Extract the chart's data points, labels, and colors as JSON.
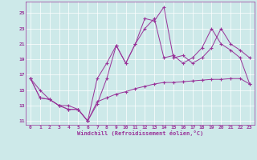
{
  "xlabel": "Windchill (Refroidissement éolien,°C)",
  "xlim": [
    -0.5,
    23.5
  ],
  "ylim": [
    10.5,
    26.5
  ],
  "xticks": [
    0,
    1,
    2,
    3,
    4,
    5,
    6,
    7,
    8,
    9,
    10,
    11,
    12,
    13,
    14,
    15,
    16,
    17,
    18,
    19,
    20,
    21,
    22,
    23
  ],
  "yticks": [
    11,
    13,
    15,
    17,
    19,
    21,
    23,
    25
  ],
  "bg_color": "#cde9e9",
  "line_color": "#993399",
  "line1": [
    [
      0,
      16.5
    ],
    [
      1,
      15.0
    ],
    [
      2,
      13.8
    ],
    [
      3,
      13.0
    ],
    [
      4,
      13.0
    ],
    [
      5,
      12.5
    ],
    [
      6,
      11.0
    ],
    [
      7,
      13.2
    ],
    [
      8,
      16.5
    ],
    [
      9,
      20.8
    ],
    [
      10,
      18.5
    ],
    [
      11,
      21.0
    ],
    [
      12,
      24.3
    ],
    [
      13,
      24.0
    ],
    [
      14,
      25.8
    ],
    [
      15,
      19.2
    ],
    [
      16,
      19.5
    ],
    [
      17,
      18.5
    ],
    [
      18,
      19.2
    ],
    [
      19,
      20.5
    ],
    [
      20,
      23.0
    ],
    [
      21,
      21.0
    ],
    [
      22,
      20.2
    ],
    [
      23,
      19.2
    ]
  ],
  "line2": [
    [
      0,
      16.5
    ],
    [
      1,
      14.0
    ],
    [
      2,
      13.8
    ],
    [
      3,
      13.0
    ],
    [
      4,
      12.5
    ],
    [
      5,
      12.5
    ],
    [
      6,
      11.0
    ],
    [
      7,
      13.5
    ],
    [
      8,
      14.0
    ],
    [
      9,
      14.5
    ],
    [
      10,
      14.8
    ],
    [
      11,
      15.2
    ],
    [
      12,
      15.5
    ],
    [
      13,
      15.8
    ],
    [
      14,
      16.0
    ],
    [
      15,
      16.0
    ],
    [
      16,
      16.1
    ],
    [
      17,
      16.2
    ],
    [
      18,
      16.3
    ],
    [
      19,
      16.4
    ],
    [
      20,
      16.4
    ],
    [
      21,
      16.5
    ],
    [
      22,
      16.5
    ],
    [
      23,
      15.8
    ]
  ],
  "line3": [
    [
      0,
      16.5
    ],
    [
      1,
      14.0
    ],
    [
      2,
      13.8
    ],
    [
      3,
      13.0
    ],
    [
      4,
      12.5
    ],
    [
      5,
      12.5
    ],
    [
      6,
      11.0
    ],
    [
      7,
      16.5
    ],
    [
      8,
      18.5
    ],
    [
      9,
      20.8
    ],
    [
      10,
      18.5
    ],
    [
      11,
      21.0
    ],
    [
      12,
      23.0
    ],
    [
      13,
      24.3
    ],
    [
      14,
      19.2
    ],
    [
      15,
      19.5
    ],
    [
      16,
      18.5
    ],
    [
      17,
      19.2
    ],
    [
      18,
      20.5
    ],
    [
      19,
      23.0
    ],
    [
      20,
      21.0
    ],
    [
      21,
      20.2
    ],
    [
      22,
      19.2
    ],
    [
      23,
      15.8
    ]
  ]
}
